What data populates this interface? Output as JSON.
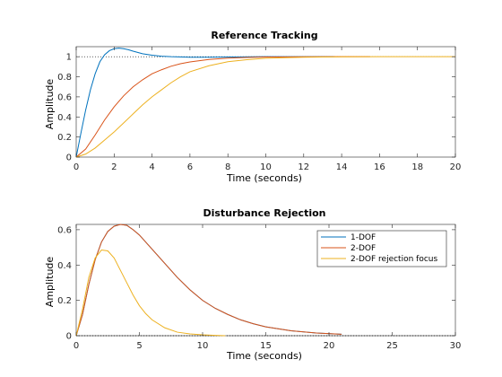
{
  "chart_data": [
    {
      "type": "line",
      "title": "Reference Tracking",
      "xlabel": "Time (seconds)",
      "ylabel": "Amplitude",
      "xlim": [
        0,
        20
      ],
      "ylim": [
        0,
        1.1
      ],
      "xticks": [
        0,
        2,
        4,
        6,
        8,
        10,
        12,
        14,
        16,
        18,
        20
      ],
      "yticks": [
        0,
        0.2,
        0.4,
        0.6,
        0.8,
        1
      ],
      "xtick_labels": [
        "0",
        "2",
        "4",
        "6",
        "8",
        "10",
        "12",
        "14",
        "16",
        "18",
        "20"
      ],
      "ytick_labels": [
        "0",
        "0.2",
        "0.4",
        "0.6",
        "0.8",
        "1"
      ],
      "reference_line": {
        "y": 1,
        "style": "dotted",
        "color": "#000000"
      },
      "grid": false,
      "series": [
        {
          "color": "#0072BD",
          "x": [
            0,
            0.25,
            0.5,
            0.75,
            1,
            1.25,
            1.5,
            1.75,
            2,
            2.25,
            2.5,
            2.75,
            3,
            3.5,
            4,
            4.5,
            5,
            6,
            7,
            8,
            10,
            13.6
          ],
          "y": [
            0,
            0.24,
            0.47,
            0.67,
            0.83,
            0.95,
            1.02,
            1.06,
            1.08,
            1.085,
            1.08,
            1.07,
            1.055,
            1.03,
            1.015,
            1.005,
            1.0,
            0.995,
            0.995,
            0.997,
            1.0,
            1.0
          ]
        },
        {
          "color": "#D95319",
          "x": [
            0,
            0.5,
            1,
            1.5,
            2,
            2.5,
            3,
            3.5,
            4,
            4.5,
            5,
            5.5,
            6,
            7,
            8,
            9,
            10,
            12,
            14,
            15.5
          ],
          "y": [
            0,
            0.08,
            0.22,
            0.37,
            0.5,
            0.61,
            0.7,
            0.77,
            0.83,
            0.87,
            0.905,
            0.93,
            0.948,
            0.973,
            0.986,
            0.993,
            0.997,
            0.999,
            1.0,
            1.0
          ]
        },
        {
          "color": "#EDB120",
          "x": [
            0,
            0.5,
            1,
            1.5,
            2,
            2.5,
            3,
            3.5,
            4,
            4.5,
            5,
            5.5,
            6,
            7,
            8,
            9,
            10,
            12,
            14,
            16,
            18,
            20
          ],
          "y": [
            0,
            0.03,
            0.09,
            0.17,
            0.25,
            0.34,
            0.43,
            0.52,
            0.6,
            0.67,
            0.74,
            0.8,
            0.85,
            0.91,
            0.95,
            0.97,
            0.985,
            0.995,
            0.999,
            1.0,
            1.0,
            1.0
          ]
        }
      ]
    },
    {
      "type": "line",
      "title": "Disturbance Rejection",
      "xlabel": "Time (seconds)",
      "ylabel": "Amplitude",
      "xlim": [
        0,
        30
      ],
      "ylim": [
        0,
        0.63
      ],
      "xticks": [
        0,
        5,
        10,
        15,
        20,
        25,
        30
      ],
      "yticks": [
        0,
        0.2,
        0.4,
        0.6
      ],
      "xtick_labels": [
        "0",
        "5",
        "10",
        "15",
        "20",
        "25",
        "30"
      ],
      "ytick_labels": [
        "0",
        "0.2",
        "0.4",
        "0.6"
      ],
      "reference_line": {
        "y": 0,
        "style": "dotted",
        "color": "#000000"
      },
      "grid": false,
      "legend": {
        "placement": "top-right",
        "entries": [
          "1-DOF",
          "2-DOF",
          "2-DOF rejection focus"
        ]
      },
      "series": [
        {
          "name": "1-DOF",
          "color": "#0072BD",
          "x": [
            0,
            0.5,
            1,
            1.5,
            2,
            2.5,
            3,
            3.5,
            4,
            4.5,
            5,
            6,
            7,
            8,
            9,
            10,
            11,
            12,
            13,
            14,
            15,
            17,
            19,
            21
          ],
          "y": [
            0,
            0.12,
            0.29,
            0.43,
            0.53,
            0.59,
            0.62,
            0.63,
            0.625,
            0.6,
            0.57,
            0.49,
            0.41,
            0.33,
            0.26,
            0.2,
            0.155,
            0.12,
            0.09,
            0.068,
            0.05,
            0.028,
            0.015,
            0.008
          ]
        },
        {
          "name": "2-DOF",
          "color": "#D95319",
          "x": [
            0,
            0.5,
            1,
            1.5,
            2,
            2.5,
            3,
            3.5,
            4,
            4.5,
            5,
            6,
            7,
            8,
            9,
            10,
            11,
            12,
            13,
            14,
            15,
            17,
            19,
            21
          ],
          "y": [
            0,
            0.12,
            0.29,
            0.43,
            0.53,
            0.59,
            0.62,
            0.63,
            0.625,
            0.6,
            0.57,
            0.49,
            0.41,
            0.33,
            0.26,
            0.2,
            0.155,
            0.12,
            0.09,
            0.068,
            0.05,
            0.028,
            0.015,
            0.008
          ]
        },
        {
          "name": "2-DOF rejection focus",
          "color": "#EDB120",
          "x": [
            0,
            0.5,
            1,
            1.5,
            2,
            2.5,
            3,
            3.5,
            4,
            4.5,
            5,
            5.5,
            6,
            7,
            8,
            9,
            10,
            11,
            11.8
          ],
          "y": [
            0,
            0.15,
            0.33,
            0.44,
            0.485,
            0.48,
            0.44,
            0.37,
            0.3,
            0.23,
            0.17,
            0.125,
            0.09,
            0.045,
            0.02,
            0.01,
            0.005,
            0.002,
            0.0
          ]
        }
      ]
    }
  ]
}
